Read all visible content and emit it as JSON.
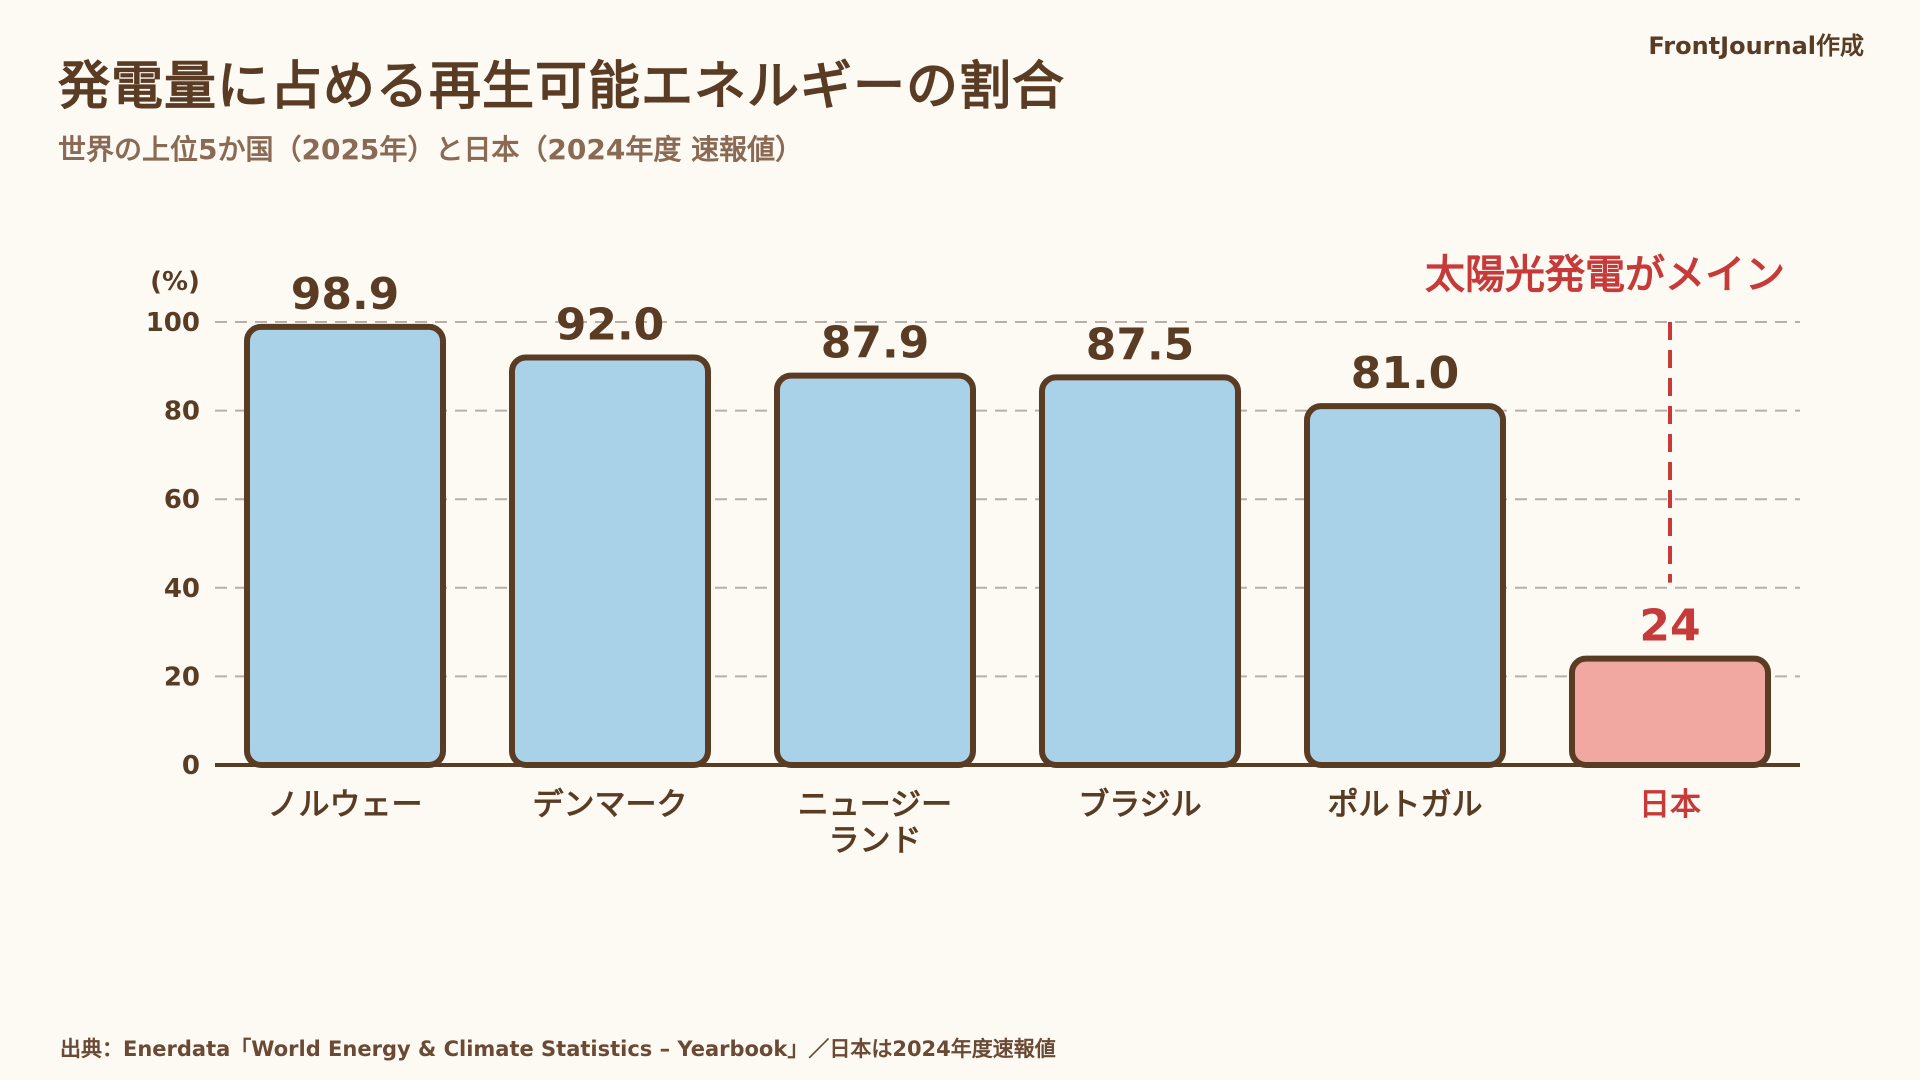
{
  "credit": "FrontJournal作成",
  "source": "出典：Enerdata「World Energy & Climate Statistics – Yearbook」／日本は2024年度速報値",
  "chart_data": {
    "type": "bar",
    "title": "発電量に占める再生可能エネルギーの割合",
    "subtitle": "世界の上位5か国（2025年）と日本（2024年度 速報値）",
    "ylabel": "(%)",
    "ylim": [
      0,
      100
    ],
    "yticks": [
      0,
      20,
      40,
      60,
      80,
      100
    ],
    "grid": true,
    "categories": [
      [
        "ノルウェー"
      ],
      [
        "デンマーク"
      ],
      [
        "ニュージー",
        "ランド"
      ],
      [
        "ブラジル"
      ],
      [
        "ポルトガル"
      ],
      [
        "日本"
      ]
    ],
    "values": [
      98.9,
      92.0,
      87.9,
      87.5,
      81.0,
      24
    ],
    "value_labels": [
      "98.9",
      "92.0",
      "87.9",
      "87.5",
      "81.0",
      "24"
    ],
    "highlight_index": 5,
    "colors": {
      "bar": "#a9d1e8",
      "bar_highlight": "#f0a8a0",
      "outline": "#5a3c25",
      "highlight_text": "#c63a3a",
      "grid": "#b8b0a8"
    },
    "annotation": "太陽光発電がメイン"
  }
}
